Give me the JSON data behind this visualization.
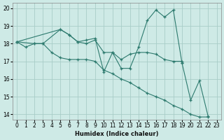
{
  "xlabel": "Humidex (Indice chaleur)",
  "xlim": [
    -0.5,
    23.5
  ],
  "ylim": [
    13.7,
    20.3
  ],
  "yticks": [
    14,
    15,
    16,
    17,
    18,
    19,
    20
  ],
  "xticks": [
    0,
    1,
    2,
    3,
    4,
    5,
    6,
    7,
    8,
    9,
    10,
    11,
    12,
    13,
    14,
    15,
    16,
    17,
    18,
    19,
    20,
    21,
    22,
    23
  ],
  "bg_color": "#ceeae6",
  "grid_color": "#a8cdc8",
  "line_color": "#2d7a6e",
  "segments": [
    {
      "x": [
        0,
        1,
        2,
        3,
        4,
        5,
        6,
        7,
        8,
        9,
        10,
        11,
        12,
        13,
        14,
        15,
        16,
        17,
        18,
        19,
        20,
        21,
        22
      ],
      "y": [
        18.1,
        17.8,
        18.0,
        18.0,
        17.5,
        17.2,
        17.1,
        17.1,
        17.1,
        17.0,
        16.5,
        16.3,
        16.0,
        15.8,
        15.5,
        15.2,
        15.0,
        14.8,
        14.5,
        14.3,
        14.0,
        13.85,
        13.85
      ]
    },
    {
      "x": [
        0,
        2,
        3,
        5,
        6,
        7,
        8,
        9,
        10,
        11,
        12,
        13,
        14,
        15,
        16,
        17,
        18,
        19
      ],
      "y": [
        18.1,
        18.0,
        18.0,
        18.8,
        18.5,
        18.1,
        18.0,
        18.2,
        17.5,
        17.5,
        17.1,
        17.4,
        17.5,
        17.5,
        17.4,
        17.1,
        17.0,
        17.0
      ]
    },
    {
      "x": [
        0,
        5,
        6,
        7,
        8,
        9,
        10,
        11,
        12,
        13,
        14,
        15,
        16,
        17,
        18,
        19
      ],
      "y": [
        18.1,
        18.8,
        18.5,
        18.1,
        18.2,
        18.3,
        16.4,
        17.5,
        16.6,
        16.6,
        17.8,
        19.3,
        19.9,
        19.5,
        19.9,
        16.9
      ]
    },
    {
      "x": [
        19,
        20,
        21,
        22
      ],
      "y": [
        16.9,
        14.8,
        15.9,
        13.9
      ]
    }
  ]
}
